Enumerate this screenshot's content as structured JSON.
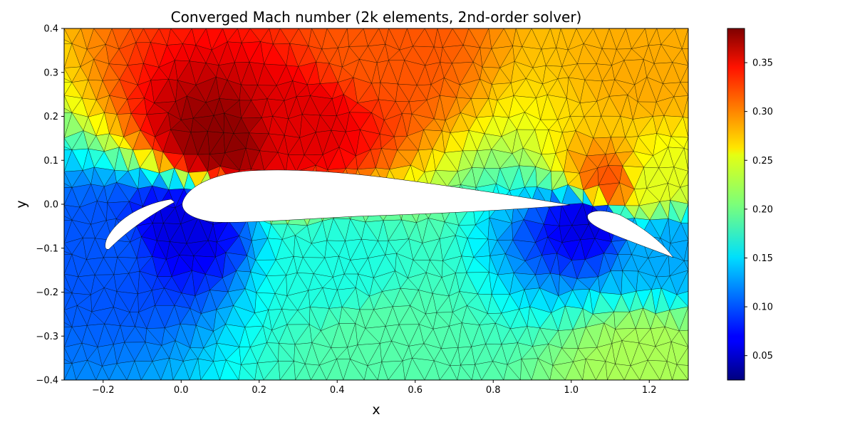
{
  "chart_data": {
    "type": "heatmap",
    "title": "Converged Mach number (2k elements, 2nd-order solver)",
    "xlabel": "x",
    "ylabel": "y",
    "xlim": [
      -0.3,
      1.3
    ],
    "ylim": [
      -0.4,
      0.4
    ],
    "x_ticks": [
      -0.2,
      0.0,
      0.2,
      0.4,
      0.6,
      0.8,
      1.0,
      1.2
    ],
    "x_tick_labels": [
      "−0.2",
      "0.0",
      "0.2",
      "0.4",
      "0.6",
      "0.8",
      "1.0",
      "1.2"
    ],
    "y_ticks": [
      0.4,
      0.3,
      0.2,
      0.1,
      0.0,
      -0.1,
      -0.2,
      -0.3,
      -0.4
    ],
    "y_tick_labels": [
      "0.4",
      "0.3",
      "0.2",
      "0.1",
      "0.0",
      "−0.1",
      "−0.2",
      "−0.3",
      "−0.4"
    ],
    "colorbar": {
      "colormap": "jet",
      "range": [
        0.025,
        0.385
      ],
      "ticks": [
        0.05,
        0.1,
        0.15,
        0.2,
        0.25,
        0.3,
        0.35
      ],
      "tick_labels": [
        "0.05",
        "0.10",
        "0.15",
        "0.20",
        "0.25",
        "0.30",
        "0.35"
      ]
    },
    "grid": false,
    "mesh": "unstructured triangular mesh, ~2000 elements, edges drawn in black",
    "field_samples": [
      {
        "x": 0.1,
        "y": 0.15,
        "mach": 0.38
      },
      {
        "x": 0.3,
        "y": 0.18,
        "mach": 0.35
      },
      {
        "x": 0.5,
        "y": 0.35,
        "mach": 0.31
      },
      {
        "x": 1.2,
        "y": 0.3,
        "mach": 0.28
      },
      {
        "x": 1.2,
        "y": 0.05,
        "mach": 0.24
      },
      {
        "x": 1.1,
        "y": 0.05,
        "mach": 0.31
      },
      {
        "x": 0.0,
        "y": -0.05,
        "mach": 0.06
      },
      {
        "x": 0.4,
        "y": -0.15,
        "mach": 0.17
      },
      {
        "x": 0.5,
        "y": -0.3,
        "mach": 0.19
      },
      {
        "x": 1.2,
        "y": -0.35,
        "mach": 0.22
      },
      {
        "x": 1.04,
        "y": -0.04,
        "mach": 0.06
      },
      {
        "x": -0.2,
        "y": -0.1,
        "mach": 0.1
      },
      {
        "x": 1.25,
        "y": -0.1,
        "mach": 0.13
      }
    ]
  }
}
